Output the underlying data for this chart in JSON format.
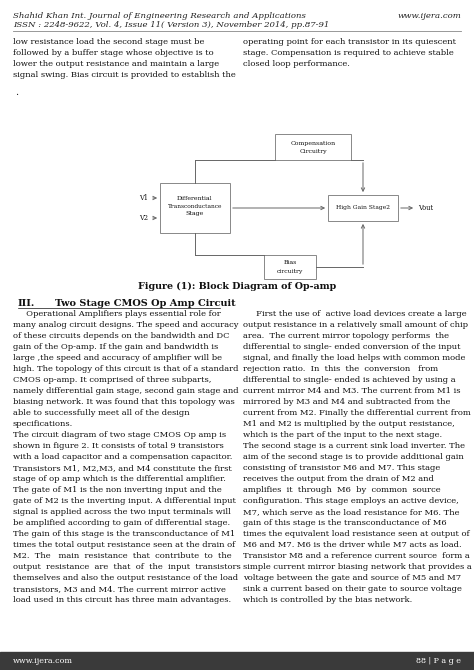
{
  "bg_color": "#ffffff",
  "footer_bg": "#3a3a3a",
  "header_italic_color": "#222222",
  "text_color": "#111111",
  "line_color": "#666666",
  "header_line1_left": "Shahid Khan Int. Journal of Engineering Research and Applications",
  "header_line1_right": "www.ijera.com",
  "header_line2": "ISSN : 2248-9622, Vol. 4, Issue 11( Version 3), November 2014, pp.87-91",
  "footer_left": "www.ijera.com",
  "footer_right": "88 | P a g e",
  "dot_marker": ".",
  "body_left_top": "low resistance load the second stage must be\nfollowed by a buffer stage whose objective is to\nlower the output resistance and maintain a large\nsignal swing. Bias circuit is provided to establish the",
  "body_right_top": "operating point for each transistor in its quiescent\nstage. Compensation is required to achieve stable\nclosed loop performance.",
  "figure_caption": "Figure (1): Block Diagram of Op-amp",
  "section_title_num": "III.",
  "section_title_text": "Two Stage CMOS Op Amp Circuit",
  "body_left_bottom": "     Operational Amplifiers plays essential role for\nmany analog circuit designs. The speed and accuracy\nof these circuits depends on the bandwidth and DC\ngain of the Op-amp. If the gain and bandwidth is\nlarge ,the speed and accuracy of amplifier will be\nhigh. The topology of this circuit is that of a standard\nCMOS op-amp. It comprised of three subparts,\nnamely differential gain stage, second gain stage and\nbiasing network. It was found that this topology was\nable to successfully meet all of the design\nspecifications.\nThe circuit diagram of two stage CMOS Op amp is\nshown in figure 2. It consists of total 9 transistors\nwith a load capacitor and a compensation capacitor.\nTransistors M1, M2,M3, and M4 constitute the first\nstage of op amp which is the differential amplifier.\nThe gate of M1 is the non inverting input and the\ngate of M2 is the inverting input. A differential input\nsignal is applied across the two input terminals will\nbe amplified according to gain of differential stage.\nThe gain of this stage is the transconductance of M1\ntimes the total output resistance seen at the drain of\nM2.  The   main  resistance  that  contribute  to  the\noutput  resistance  are  that  of  the  input  transistors\nthemselves and also the output resistance of the load\ntransistors, M3 and M4. The current mirror active\nload used in this circuit has three main advantages.",
  "body_right_bottom": "     First the use of  active load devices create a large\noutput resistance in a relatively small amount of chip\narea.  The current mirror topology performs  the\ndifferential to single- ended conversion of the input\nsignal, and finally the load helps with common mode\nrejection ratio.  In  this  the  conversion   from\ndifferential to single- ended is achieved by using a\ncurrent mirror M4 and M3. The current from M1 is\nmirrored by M3 and M4 and subtracted from the\ncurrent from M2. Finally the differential current from\nM1 and M2 is multiplied by the output resistance,\nwhich is the part of the input to the next stage.\nThe second stage is a current sink load inverter. The\naim of the second stage is to provide additional gain\nconsisting of transistor M6 and M7. This stage\nreceives the output from the drain of M2 and\namplifies  it  through  M6  by  common  source\nconfiguration. This stage employs an active device,\nM7, which serve as the load resistance for M6. The\ngain of this stage is the transconductance of M6\ntimes the equivalent load resistance seen at output of\nM6 and M7. M6 is the driver while M7 acts as load.\nTransistor M8 and a reference current source  form a\nsimple current mirror biasing network that provides a\nvoltage between the gate and source of M5 and M7\nsink a current based on their gate to source voltage\nwhich is controlled by the bias network."
}
